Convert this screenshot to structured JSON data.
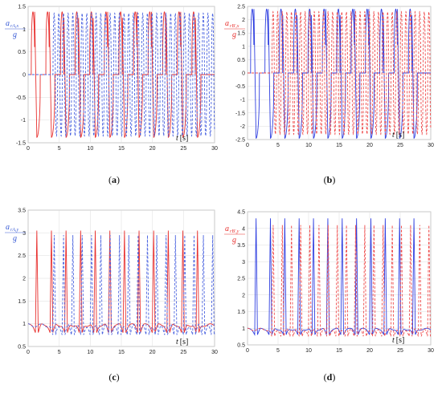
{
  "chart_data": [
    {
      "type": "line",
      "panel": "(a)",
      "ylabel": {
        "symbol": "a",
        "sub": "rA,x",
        "den": "g",
        "color": "#3a5cd6"
      },
      "xlabel": {
        "symbol": "t",
        "unit": "[s]"
      },
      "xlim": [
        0,
        30
      ],
      "ylim": [
        -1.5,
        1.5
      ],
      "xticks": [
        0,
        5,
        10,
        15,
        20,
        25,
        30
      ],
      "yticks": [
        -1.5,
        -1,
        -0.5,
        0,
        0.5,
        1,
        1.5
      ],
      "series": [
        {
          "color": "#e8312f",
          "style": "solid",
          "kind": "pulseA",
          "t0": 1.2,
          "period": 2.35,
          "count": 12,
          "hi": 1.38,
          "lo": -1.38,
          "base": 0
        },
        {
          "color": "#4a63e0",
          "style": "dashed",
          "kind": "osc",
          "t0": 4.0,
          "period": 0.75,
          "hi": 1.35,
          "lo": -1.35,
          "base": 0
        }
      ]
    },
    {
      "type": "line",
      "panel": "(b)",
      "ylabel": {
        "symbol": "a",
        "sub": "rB',x",
        "den": "g",
        "color": "#e8312f"
      },
      "xlabel": {
        "symbol": "t",
        "unit": "[s]"
      },
      "xlim": [
        0,
        30
      ],
      "ylim": [
        -2.5,
        2.5
      ],
      "xticks": [
        0,
        5,
        10,
        15,
        20,
        25,
        30
      ],
      "yticks": [
        -2.5,
        -2,
        -1.5,
        -1,
        -0.5,
        0,
        0.5,
        1,
        1.5,
        2,
        2.5
      ],
      "series": [
        {
          "color": "#2f3fe0",
          "style": "solid",
          "kind": "pulseA",
          "t0": 1.2,
          "period": 2.35,
          "count": 12,
          "hi": 2.4,
          "lo": -2.45,
          "base": 0
        },
        {
          "color": "#ef4a4a",
          "style": "dashed",
          "kind": "osc",
          "t0": 4.0,
          "period": 0.75,
          "hi": 2.3,
          "lo": -2.3,
          "base": 0
        }
      ]
    },
    {
      "type": "line",
      "panel": "(c)",
      "ylabel": {
        "symbol": "a",
        "sub": "rA,y",
        "den": "g",
        "color": "#3a5cd6"
      },
      "xlabel": {
        "symbol": "t",
        "unit": "[s]"
      },
      "xlim": [
        0,
        30
      ],
      "ylim": [
        0.5,
        3.5
      ],
      "xticks": [
        0,
        5,
        10,
        15,
        20,
        25,
        30
      ],
      "yticks": [
        0.5,
        1,
        1.5,
        2,
        2.5,
        3,
        3.5
      ],
      "series": [
        {
          "color": "#e8312f",
          "style": "solid",
          "kind": "spikes",
          "t0": 1.4,
          "period": 2.35,
          "count": 12,
          "hi": 3.05,
          "base": 1.0,
          "dip": 0.8
        },
        {
          "color": "#4a63e0",
          "style": "dashed",
          "kind": "spikes",
          "t0": 4.2,
          "period": 1.5,
          "count": 18,
          "hi": 2.95,
          "base": 1.0,
          "dip": 0.75
        }
      ]
    },
    {
      "type": "line",
      "panel": "(d)",
      "ylabel": {
        "symbol": "a",
        "sub": "rB',y",
        "den": "g",
        "color": "#e8312f"
      },
      "xlabel": {
        "symbol": "t",
        "unit": "[s]"
      },
      "xlim": [
        0,
        30
      ],
      "ylim": [
        0.5,
        4.5
      ],
      "xticks": [
        0,
        5,
        10,
        15,
        20,
        25,
        30
      ],
      "yticks": [
        0.5,
        1,
        1.5,
        2,
        2.5,
        3,
        3.5,
        4,
        4.5
      ],
      "series": [
        {
          "color": "#2f3fe0",
          "style": "solid",
          "kind": "spikes",
          "t0": 1.4,
          "period": 2.35,
          "count": 12,
          "hi": 4.3,
          "base": 1.0,
          "dip": 0.8
        },
        {
          "color": "#ef4a4a",
          "style": "dashed",
          "kind": "spikes",
          "t0": 4.2,
          "period": 1.5,
          "count": 18,
          "hi": 4.1,
          "base": 1.0,
          "dip": 0.75
        }
      ]
    }
  ]
}
